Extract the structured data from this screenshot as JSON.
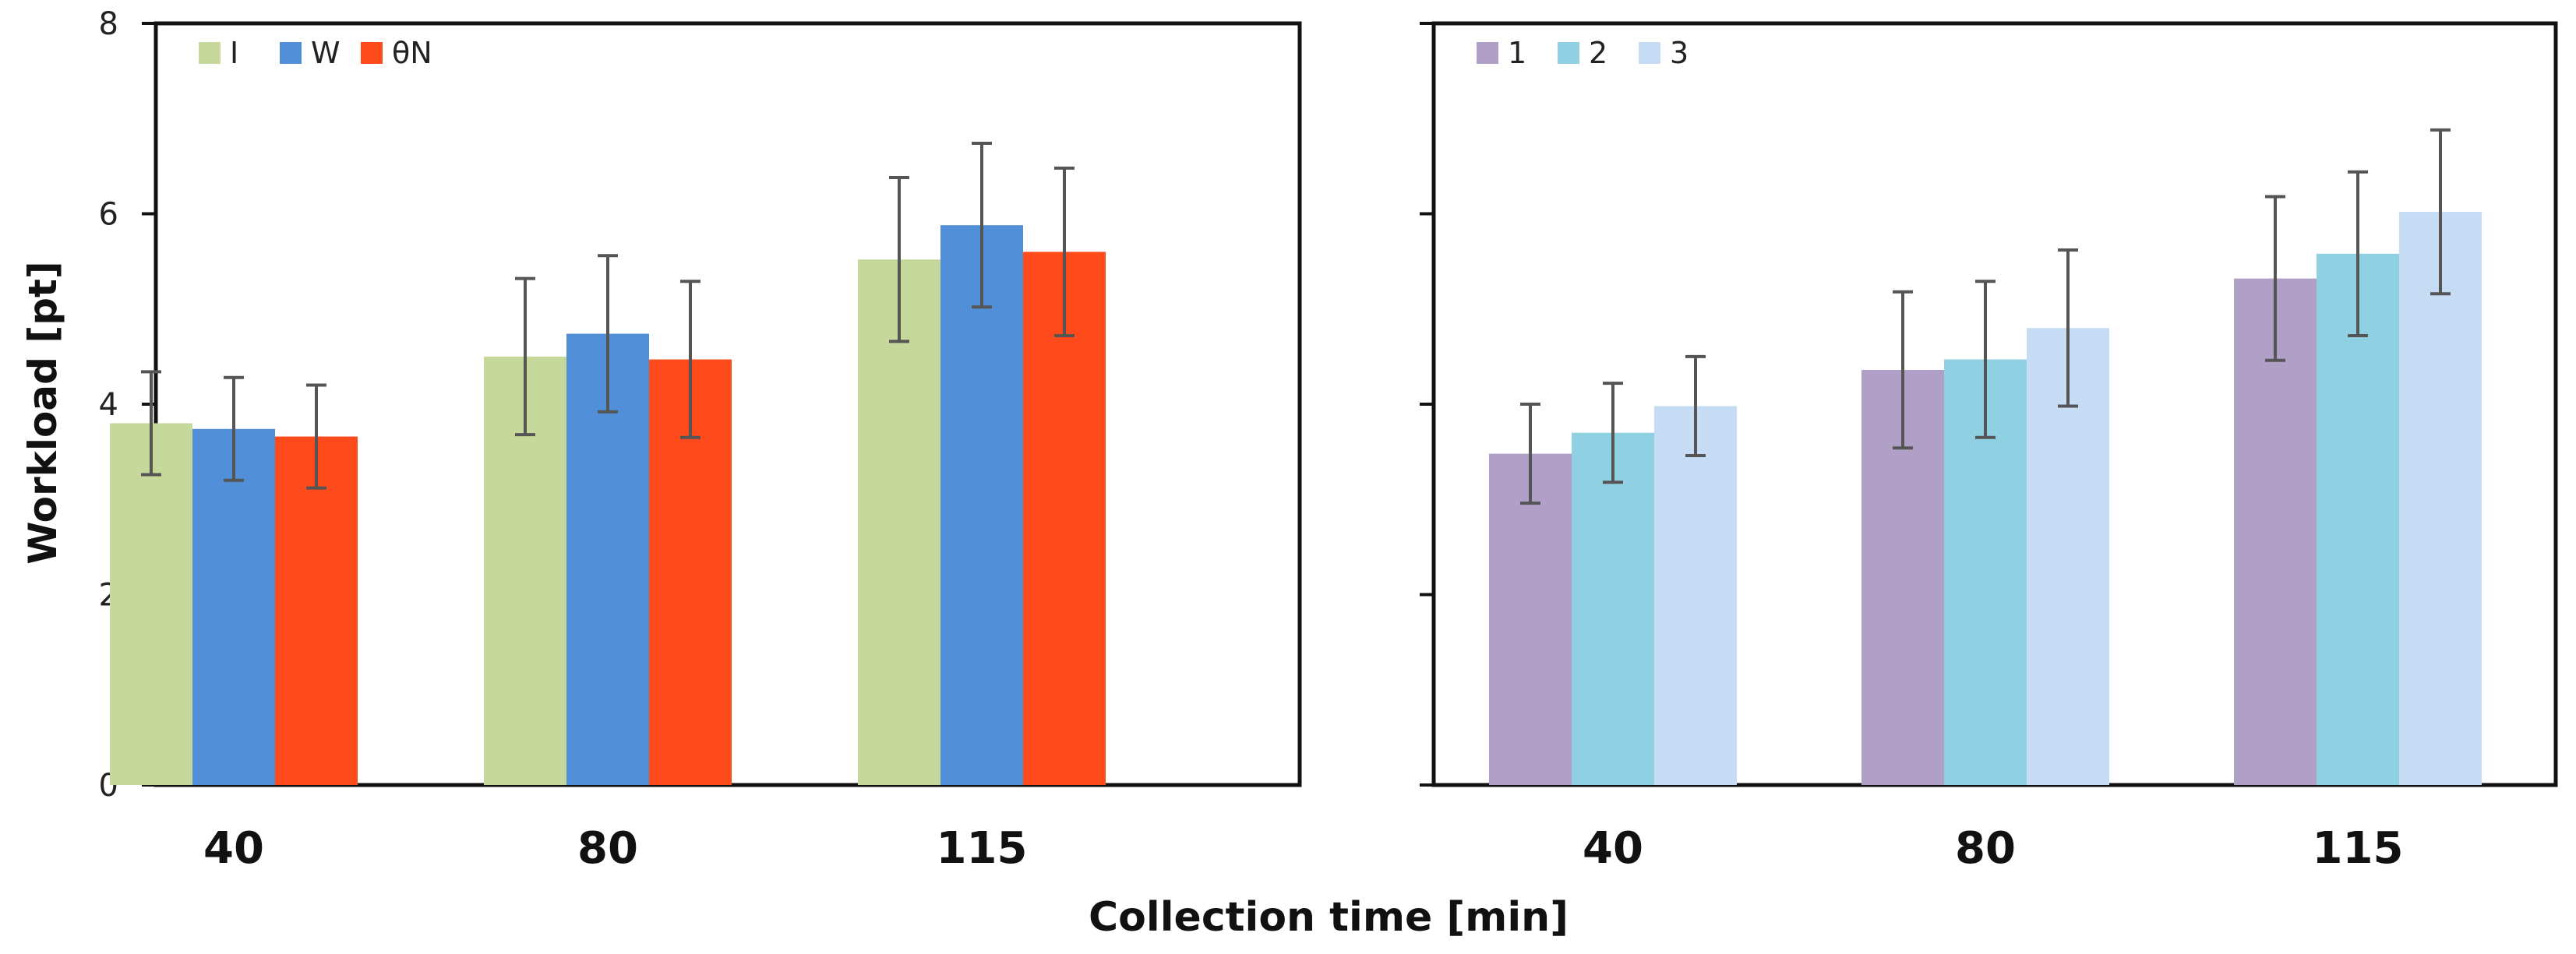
{
  "chart_data": [
    {
      "type": "bar",
      "categories": [
        "40",
        "80",
        "115"
      ],
      "series": [
        {
          "name": "I",
          "color": "#c6d89a",
          "values": [
            3.8,
            4.5,
            5.52
          ],
          "errors": [
            0.54,
            0.82,
            0.86
          ]
        },
        {
          "name": "W",
          "color": "#5190d9",
          "values": [
            3.74,
            4.74,
            5.88
          ],
          "errors": [
            0.54,
            0.82,
            0.86
          ]
        },
        {
          "name": "θN",
          "color": "#ff4a1c",
          "values": [
            3.66,
            4.47,
            5.6
          ],
          "errors": [
            0.54,
            0.82,
            0.88
          ]
        }
      ],
      "yticks": [
        "0",
        "2",
        "4",
        "6",
        "8"
      ],
      "ylim": [
        0,
        8
      ],
      "ylabel": "Workload [pt]",
      "legend_position": "top-left"
    },
    {
      "type": "bar",
      "categories": [
        "40",
        "80",
        "115"
      ],
      "series": [
        {
          "name": "1",
          "color": "#b0a0c8",
          "values": [
            3.48,
            4.36,
            5.32
          ],
          "errors": [
            0.52,
            0.82,
            0.86
          ]
        },
        {
          "name": "2",
          "color": "#8fd0e3",
          "values": [
            3.7,
            4.47,
            5.58
          ],
          "errors": [
            0.52,
            0.82,
            0.86
          ]
        },
        {
          "name": "3",
          "color": "#c6dcf5",
          "values": [
            3.98,
            4.8,
            6.02
          ],
          "errors": [
            0.52,
            0.82,
            0.86
          ]
        }
      ],
      "ylim": [
        0,
        8
      ],
      "legend_position": "top-left"
    }
  ],
  "xlabel": "Collection time [min]"
}
